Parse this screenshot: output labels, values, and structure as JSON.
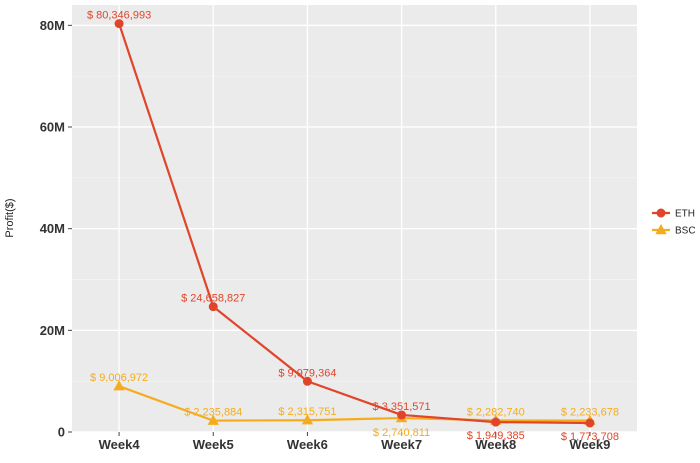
{
  "chart_data": {
    "type": "line",
    "title": "",
    "xlabel": "",
    "ylabel": "Profit($)",
    "categories": [
      "Week4",
      "Week5",
      "Week6",
      "Week7",
      "Week8",
      "Week9"
    ],
    "ylim": [
      0,
      84000000
    ],
    "yticks": [
      0,
      20000000,
      40000000,
      60000000,
      80000000
    ],
    "ytick_labels": [
      "0",
      "20M",
      "40M",
      "60M",
      "80M"
    ],
    "grid": true,
    "legend_position": "right",
    "series": [
      {
        "name": "ETH",
        "color": "#e0452b",
        "marker": "circle",
        "values": [
          80346993,
          24658827,
          9979364,
          3351571,
          1949385,
          1773708
        ],
        "labels": [
          "$ 80,346,993",
          "$ 24,658,827",
          "$ 9,979,364",
          "$ 3,351,571",
          "$ 1,949,385",
          "$ 1,773,708"
        ]
      },
      {
        "name": "BSC",
        "color": "#f5ac1c",
        "marker": "triangle",
        "values": [
          9006972,
          2235884,
          2315751,
          2740811,
          2282740,
          2233678
        ],
        "labels": [
          "$ 9,006,972",
          "$ 2,235,884",
          "$ 2,315,751",
          "$ 2,740,811",
          "$ 2,282,740",
          "$ 2,233,678"
        ]
      }
    ]
  }
}
